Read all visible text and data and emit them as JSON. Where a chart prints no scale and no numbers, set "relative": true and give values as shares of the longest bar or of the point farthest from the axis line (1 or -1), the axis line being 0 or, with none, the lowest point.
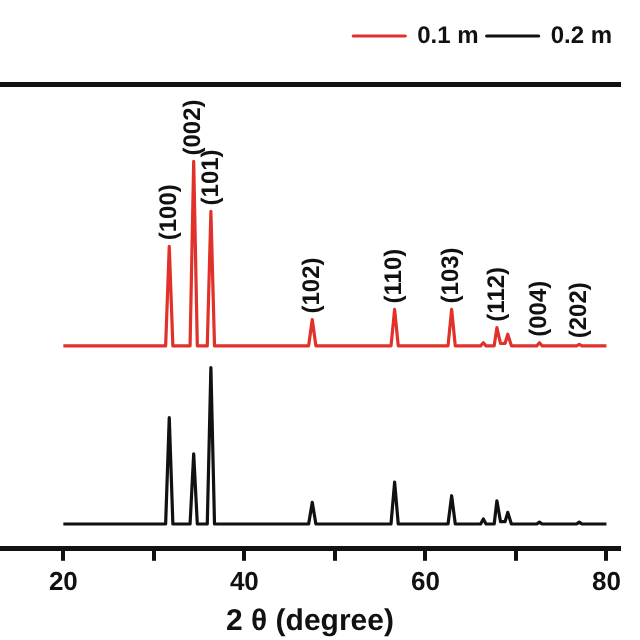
{
  "chart_data": {
    "type": "line",
    "relative": true,
    "xlabel": "2 θ (degree)",
    "xlim": [
      13,
      81.5
    ],
    "xticks": [
      20,
      {
        "value": 30,
        "label": null
      },
      40,
      {
        "value": 50,
        "label": null
      },
      60,
      {
        "value": 70,
        "label": null
      },
      80
    ],
    "x": [
      20,
      31.3,
      31.7,
      32.1,
      34.0,
      34.4,
      34.8,
      35.9,
      36.3,
      36.7,
      47.1,
      47.5,
      47.9,
      56.2,
      56.6,
      57.0,
      62.5,
      62.9,
      63.3,
      66.1,
      66.4,
      66.7,
      67.6,
      67.9,
      68.3,
      68.8,
      69.1,
      69.5,
      72.3,
      72.6,
      72.9,
      76.7,
      77.0,
      77.3,
      80
    ],
    "legend": "top right",
    "grid": false,
    "marker": "none",
    "series": [
      {
        "name": "0.1 m",
        "color": "#e0312b",
        "values": [
          0.524,
          0.524,
          0.781,
          0.524,
          0.524,
          1.0,
          0.524,
          0.524,
          0.871,
          0.524,
          0.524,
          0.592,
          0.524,
          0.524,
          0.618,
          0.524,
          0.524,
          0.618,
          0.524,
          0.524,
          0.532,
          0.524,
          0.524,
          0.571,
          0.53,
          0.53,
          0.554,
          0.524,
          0.524,
          0.532,
          0.524,
          0.524,
          0.528,
          0.524,
          0.524
        ]
      },
      {
        "name": "0.2 m",
        "color": "#111111",
        "values": [
          0.064,
          0.064,
          0.339,
          0.064,
          0.064,
          0.245,
          0.064,
          0.064,
          0.468,
          0.064,
          0.064,
          0.12,
          0.064,
          0.064,
          0.172,
          0.064,
          0.064,
          0.137,
          0.064,
          0.064,
          0.077,
          0.064,
          0.064,
          0.124,
          0.07,
          0.07,
          0.094,
          0.064,
          0.064,
          0.069,
          0.064,
          0.064,
          0.069,
          0.064,
          0.064
        ]
      }
    ],
    "annotations": [
      {
        "text": "(100)",
        "x": 31.7,
        "y": 0.781
      },
      {
        "text": "(002)",
        "x": 34.4,
        "y": 1.0
      },
      {
        "text": "(101)",
        "x": 36.3,
        "y": 0.871
      },
      {
        "text": "(102)",
        "x": 47.5,
        "y": 0.592
      },
      {
        "text": "(110)",
        "x": 56.6,
        "y": 0.618
      },
      {
        "text": "(103)",
        "x": 62.9,
        "y": 0.618
      },
      {
        "text": "(112)",
        "x": 67.9,
        "y": 0.571
      },
      {
        "text": "(004)",
        "x": 72.6,
        "y": 0.532
      },
      {
        "text": "(202)",
        "x": 77.0,
        "y": 0.528
      }
    ]
  }
}
